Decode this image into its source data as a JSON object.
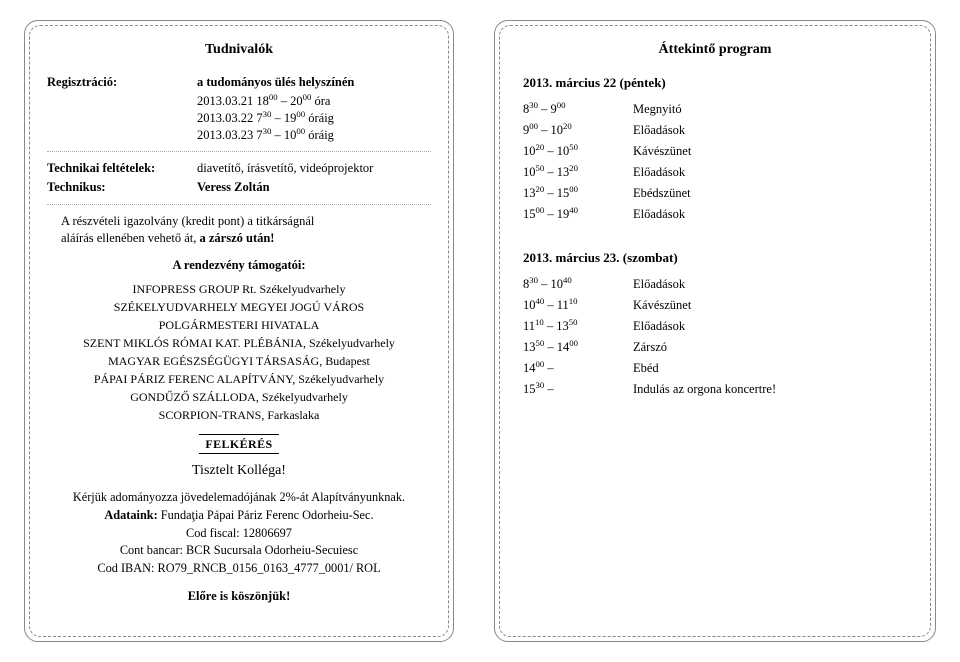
{
  "left": {
    "title": "Tudnivalók",
    "rows": {
      "reg_label": "Regisztráció:",
      "reg_val": "a tudományos ülés helyszínén",
      "reg_l1_a": "2013.03.21  18",
      "reg_l1_b": " – 20",
      "reg_l1_c": " óra",
      "reg_l2_a": "2013.03.22  7",
      "reg_l2_b": " – 19",
      "reg_l2_c": " óráig",
      "reg_l3_a": "2013.03.23  7",
      "reg_l3_b": " – 10",
      "reg_l3_c": " óráig",
      "tech_label": "Technikai feltételek:",
      "tech_val": "diavetítő, írásvetítő, videóprojektor",
      "tecn_label": "Technikus:",
      "tecn_val": "Veress Zoltán"
    },
    "note_a": "A részvételi igazolvány (kredit pont) a titkárságnál",
    "note_b": "aláírás ellenében vehető át, ",
    "note_c": "a zárszó után!",
    "sponsor_head": "A rendezvény támogatói:",
    "sponsors": {
      "s1a": "INFOPRESS GROUP Rt. ",
      "s1b": "Székelyudvarhely",
      "s2": "SZÉKELYUDVARHELY MEGYEI JOGÚ VÁROS",
      "s3": "POLGÁRMESTERI HIVATALA",
      "s4a": "SZENT MIKLÓS RÓMAI KAT. PLÉBÁNIA, ",
      "s4b": "Székelyudvarhely",
      "s5a": "MAGYAR EGÉSZSÉGÜGYI TÁRSASÁG, ",
      "s5b": "Budapest",
      "s6a": "PÁPAI  PÁRIZ  FERENC ALAPÍTVÁNY, ",
      "s6b": "Székelyudvarhely",
      "s7a": "GONDŰZŐ SZÁLLODA, ",
      "s7b": "Székelyudvarhely",
      "s8a": "SCORPION-TRANS, ",
      "s8b": "Farkaslaka"
    },
    "felkeres": "FELKÉRÉS",
    "tisztelt": "Tisztelt Kolléga!",
    "body": {
      "l1": "Kérjük adományozza jövedelemadójának 2%-át Alapítványunknak.",
      "l2a": "Adataink:",
      "l2b": " Fundaţia Pápai Páriz Ferenc Odorheiu-Sec.",
      "l3": "Cod fiscal: 12806697",
      "l4": "Cont bancar: BCR Sucursala Odorheiu-Secuiesc",
      "l5": "Cod IBAN: RO79_RNCB_0156_0163_4777_0001/ ROL"
    },
    "thanks": "Előre is köszönjük!"
  },
  "right": {
    "title": "Áttekintő program",
    "day1": "2013. március 22 (péntek)",
    "day2": "2013. március 23. (szombat)",
    "d1": [
      {
        "ta": "8",
        "tb": "30",
        "tc": " – 9",
        "td": "00",
        "desc": "Megnyitó"
      },
      {
        "ta": "9",
        "tb": "00",
        "tc": " – 10",
        "td": "20",
        "desc": "Előadások"
      },
      {
        "ta": "10",
        "tb": "20",
        "tc": " – 10",
        "td": "50",
        "desc": "Kávészünet"
      },
      {
        "ta": "10",
        "tb": "50",
        "tc": " – 13",
        "td": "20",
        "desc": "Előadások"
      },
      {
        "ta": "13",
        "tb": "20",
        "tc": " – 15",
        "td": "00",
        "desc": "Ebédszünet"
      },
      {
        "ta": "15",
        "tb": "00",
        "tc": " – 19",
        "td": "40",
        "desc": "Előadások"
      }
    ],
    "d2": [
      {
        "ta": "8",
        "tb": "30",
        "tc": " – 10",
        "td": "40",
        "desc": "Előadások"
      },
      {
        "ta": "10",
        "tb": "40",
        "tc": " – 11",
        "td": "10",
        "desc": "Kávészünet"
      },
      {
        "ta": "11",
        "tb": "10",
        "tc": " – 13",
        "td": "50",
        "desc": "Előadások"
      },
      {
        "ta": "13",
        "tb": "50",
        "tc": " – 14",
        "td": "00",
        "desc": "Zárszó"
      },
      {
        "ta": "14",
        "tb": "00",
        "tc": " –",
        "td": "",
        "desc": "Ebéd"
      },
      {
        "ta": "15",
        "tb": "30",
        "tc": " –",
        "td": "",
        "desc": "Indulás az orgona koncertre!"
      }
    ]
  }
}
